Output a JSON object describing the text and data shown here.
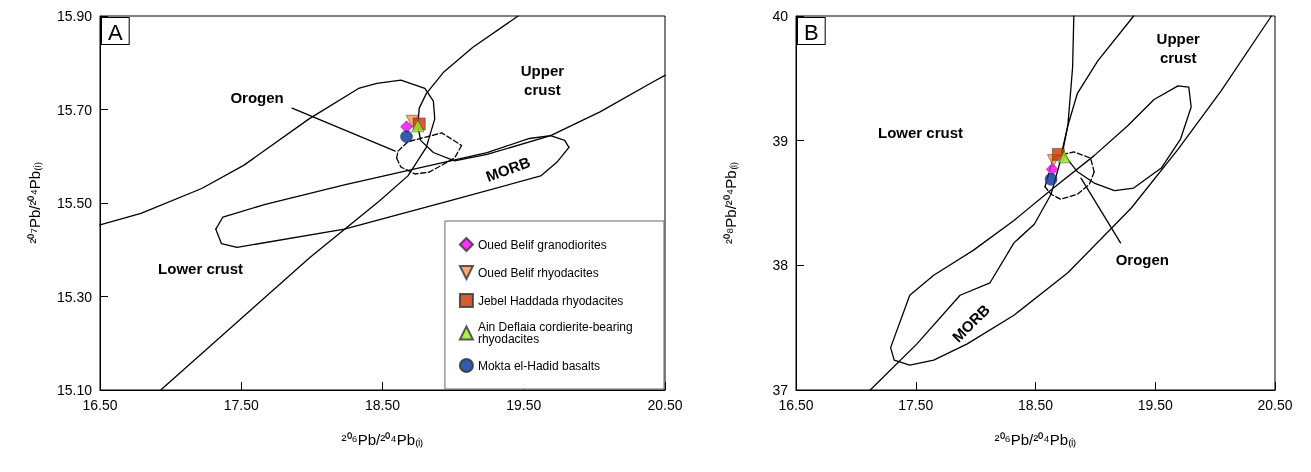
{
  "chart_data": [
    {
      "type": "scatter",
      "title": "A",
      "xlabel": "²⁰⁶Pb/²⁰⁴Pb₍ᵢ₎",
      "ylabel": "²⁰⁷Pb/²⁰⁴Pb₍ᵢ₎",
      "xlim": [
        16.5,
        20.5
      ],
      "xticks": [
        {
          "value": 16.5,
          "label": "16.50"
        },
        {
          "value": 17.5,
          "label": "17.50"
        },
        {
          "value": 18.5,
          "label": "18.50"
        },
        {
          "value": 19.5,
          "label": "19.50"
        },
        {
          "value": 20.5,
          "label": "20.50"
        }
      ],
      "ylim": [
        15.1,
        15.9
      ],
      "yticks": [
        {
          "value": 15.1,
          "label": "15.10"
        },
        {
          "value": 15.3,
          "label": "15.30"
        },
        {
          "value": 15.5,
          "label": "15.50"
        },
        {
          "value": 15.7,
          "label": "15.70"
        },
        {
          "value": 15.9,
          "label": "15.90"
        }
      ],
      "grid": false,
      "legend": "bottom right",
      "annotations": [
        "Orogen",
        "Upper\ncrust",
        "MORB",
        "Lower crust"
      ],
      "series": [
        {
          "type": "line",
          "color": "#000000",
          "marker": "none",
          "line_style": "solid",
          "x": [
            16.93,
            17.47,
            17.98,
            18.48,
            18.68,
            18.81,
            18.87,
            18.86,
            18.8,
            18.63,
            18.46,
            18.33,
            17.98,
            17.52,
            17.22,
            16.79,
            16.5
          ],
          "values": [
            15.1,
            15.245,
            15.382,
            15.505,
            15.558,
            15.619,
            15.68,
            15.718,
            15.745,
            15.763,
            15.756,
            15.745,
            15.68,
            15.581,
            15.531,
            15.478,
            15.453
          ]
        },
        {
          "type": "line",
          "color": "#000000",
          "marker": "none",
          "line_style": "solid",
          "x": [
            19.46,
            19.14,
            18.93,
            18.81,
            18.76,
            18.75,
            18.77,
            18.86,
            19.01,
            19.24,
            19.69,
            20.04,
            20.42,
            20.5
          ],
          "values": [
            15.9,
            15.833,
            15.779,
            15.734,
            15.703,
            15.665,
            15.634,
            15.608,
            15.59,
            15.604,
            15.644,
            15.695,
            15.76,
            15.773
          ]
        },
        {
          "type": "line",
          "color": "#000000",
          "marker": "none",
          "line_style": "solid",
          "x": [
            19.69,
            19.79,
            19.82
          ],
          "values": [
            15.644,
            15.634,
            15.619
          ]
        },
        {
          "type": "line",
          "color": "#000000",
          "marker": "none",
          "line_style": "solid",
          "x": [
            19.82,
            19.74,
            19.62,
            18.98,
            18.23,
            17.47,
            17.36,
            17.32
          ],
          "values": [
            15.619,
            15.589,
            15.558,
            15.505,
            15.444,
            15.405,
            15.413,
            15.444
          ]
        },
        {
          "type": "line",
          "color": "#000000",
          "marker": "none",
          "line_style": "solid",
          "x": [
            17.32,
            17.37,
            17.67,
            18.23,
            18.73,
            19.24,
            19.54,
            19.69
          ],
          "values": [
            15.444,
            15.47,
            15.497,
            15.539,
            15.573,
            15.608,
            15.638,
            15.644
          ]
        },
        {
          "type": "line",
          "color": "#000000",
          "marker": "none",
          "line_style": "dashed",
          "x": [
            18.61,
            18.68,
            18.92,
            19.06
          ],
          "values": [
            15.611,
            15.631,
            15.65,
            15.623
          ]
        },
        {
          "type": "line",
          "color": "#000000",
          "marker": "none",
          "line_style": "dashed",
          "x": [
            19.06,
            19.01,
            18.83,
            18.73,
            18.63,
            18.6
          ],
          "values": [
            15.623,
            15.596,
            15.566,
            15.562,
            15.577,
            15.596
          ]
        },
        {
          "type": "line",
          "color": "#000000",
          "marker": "none",
          "line_style": "dashed",
          "x": [
            18.6,
            18.61
          ],
          "values": [
            15.596,
            15.611
          ]
        },
        {
          "type": "line",
          "color": "#000000",
          "marker": "none",
          "line_style": "solid",
          "x": [
            17.86,
            18.59
          ],
          "values": [
            15.703,
            15.611
          ]
        },
        {
          "name": "Oued Belif granodiorites",
          "color": "#ff00ff",
          "marker": "diamond",
          "x": [
            18.67
          ],
          "values": [
            15.663
          ]
        },
        {
          "name": "Oued Belif rhyodacites",
          "color": "#f79646",
          "marker": "triangle-down",
          "x": [
            18.71
          ],
          "values": [
            15.675
          ]
        },
        {
          "name": "Jebel Haddada rhyodacites",
          "color": "#cc3300",
          "marker": "square",
          "x": [
            18.76
          ],
          "values": [
            15.669
          ]
        },
        {
          "name": "Ain Deflaia cordierite-bearing rhyodacites",
          "color": "#99ee22",
          "marker": "triangle",
          "x": [
            18.75
          ],
          "values": [
            15.665
          ]
        },
        {
          "name": "Mokta el-Hadid basalts",
          "color": "#003399",
          "marker": "circle",
          "x": [
            18.67
          ],
          "values": [
            15.642
          ]
        }
      ]
    },
    {
      "type": "scatter",
      "title": "B",
      "xlabel": "²⁰⁶Pb/²⁰⁴Pb₍ᵢ₎",
      "ylabel": "²⁰⁸Pb/²⁰⁴Pb₍ᵢ₎",
      "xlim": [
        16.5,
        20.5
      ],
      "xticks": [
        {
          "value": 16.5,
          "label": "16.50"
        },
        {
          "value": 17.5,
          "label": "17.50"
        },
        {
          "value": 18.5,
          "label": "18.50"
        },
        {
          "value": 19.5,
          "label": "19.50"
        },
        {
          "value": 20.5,
          "label": "20.50"
        }
      ],
      "ylim": [
        37,
        40
      ],
      "yticks": [
        37,
        38,
        39,
        40
      ],
      "grid": false,
      "annotations": [
        "Orogen",
        "Upper\ncrust",
        "Lower crust",
        "MORB"
      ],
      "series": [
        {
          "type": "line",
          "color": "#000000",
          "marker": "none",
          "line_style": "solid",
          "x": [
            17.12,
            17.51,
            17.87,
            18.12,
            18.32,
            18.49,
            18.63,
            18.72,
            18.77,
            18.81,
            18.82
          ],
          "values": [
            37.0,
            37.37,
            37.76,
            37.86,
            38.18,
            38.33,
            38.57,
            38.88,
            39.12,
            39.59,
            40.0
          ]
        },
        {
          "type": "line",
          "color": "#000000",
          "marker": "none",
          "line_style": "solid",
          "x": [
            19.32,
            19.02,
            18.85,
            18.77,
            18.72,
            18.85,
            18.99,
            19.16,
            19.32,
            19.55,
            19.71,
            19.8,
            19.78,
            19.69,
            19.49,
            19.27,
            18.99,
            18.65,
            18.32,
            17.98,
            17.65,
            17.45,
            17.29,
            17.32,
            17.45,
            17.65,
            17.93,
            18.32,
            18.77,
            19.3,
            19.69,
            20.05,
            20.47
          ],
          "values": [
            40.0,
            39.64,
            39.38,
            39.12,
            38.91,
            38.75,
            38.66,
            38.6,
            38.62,
            38.78,
            39.01,
            39.27,
            39.43,
            39.44,
            39.33,
            39.12,
            38.88,
            38.62,
            38.36,
            38.12,
            37.92,
            37.76,
            37.34,
            37.24,
            37.2,
            37.24,
            37.37,
            37.6,
            37.94,
            38.46,
            38.93,
            39.4,
            40.0
          ]
        },
        {
          "type": "line",
          "color": "#000000",
          "marker": "none",
          "line_style": "dashed",
          "x": [
            18.6,
            18.65,
            18.82,
            18.96,
            18.99
          ],
          "values": [
            38.7,
            38.87,
            38.91,
            38.86,
            38.75
          ]
        },
        {
          "type": "line",
          "color": "#000000",
          "marker": "none",
          "line_style": "dashed",
          "x": [
            18.99,
            18.95,
            18.85,
            18.71,
            18.63,
            18.58
          ],
          "values": [
            38.75,
            38.65,
            38.57,
            38.53,
            38.57,
            38.63
          ]
        },
        {
          "type": "line",
          "color": "#000000",
          "marker": "none",
          "line_style": "dashed",
          "x": [
            18.58,
            18.6
          ],
          "values": [
            38.63,
            38.7
          ]
        },
        {
          "type": "line",
          "color": "#000000",
          "marker": "none",
          "line_style": "solid",
          "x": [
            18.88,
            19.21
          ],
          "values": [
            38.7,
            38.18
          ]
        },
        {
          "color": "#ff00ff",
          "marker": "diamond",
          "x": [
            18.64
          ],
          "values": [
            38.77
          ]
        },
        {
          "color": "#f79646",
          "marker": "triangle-down",
          "x": [
            18.65
          ],
          "values": [
            38.84
          ]
        },
        {
          "color": "#cc3300",
          "marker": "square",
          "x": [
            18.69
          ],
          "values": [
            38.89
          ]
        },
        {
          "color": "#99ee22",
          "marker": "triangle",
          "x": [
            18.74
          ],
          "values": [
            38.87
          ]
        },
        {
          "color": "#003399",
          "marker": "circle",
          "x": [
            18.63
          ],
          "values": [
            38.69
          ]
        }
      ]
    }
  ]
}
